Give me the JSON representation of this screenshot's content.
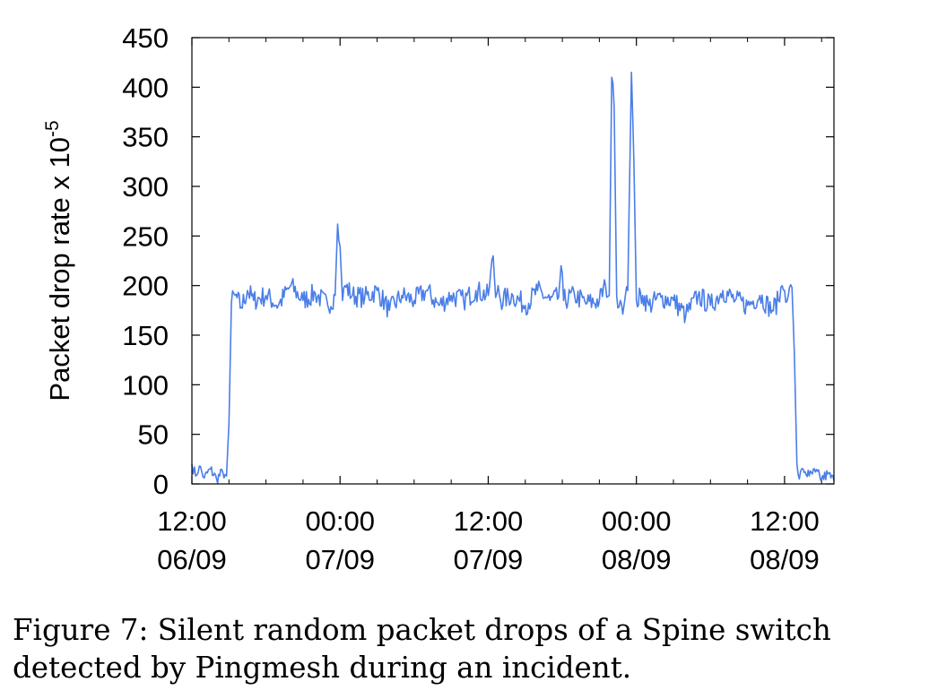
{
  "chart_data": {
    "type": "line",
    "ylabel": "Packet drop rate x 10",
    "ylabel_exponent": "-5",
    "y_ticks": [
      0,
      50,
      100,
      150,
      200,
      250,
      300,
      350,
      400,
      450
    ],
    "ylim": [
      0,
      450
    ],
    "x_range_hours": [
      0,
      52
    ],
    "x_ticks": [
      {
        "hour": 0,
        "line1": "12:00",
        "line2": "06/09"
      },
      {
        "hour": 12,
        "line1": "00:00",
        "line2": "07/09"
      },
      {
        "hour": 24,
        "line1": "12:00",
        "line2": "07/09"
      },
      {
        "hour": 36,
        "line1": "00:00",
        "line2": "08/09"
      },
      {
        "hour": 48,
        "line1": "12:00",
        "line2": "08/09"
      }
    ],
    "x_minor_tick_hours": [
      3,
      6,
      9,
      15,
      18,
      21,
      27,
      30,
      33,
      39,
      42,
      45,
      51
    ],
    "series": [
      {
        "color": "#4a7ee8",
        "x": [
          0,
          0.3,
          0.6,
          1.0,
          1.5,
          2.0,
          2.5,
          2.8,
          3.0,
          3.2,
          3.5,
          4.0,
          4.5,
          5.0,
          6.0,
          7.0,
          8.0,
          9.0,
          10.0,
          11.0,
          11.6,
          11.8,
          12.0,
          12.2,
          12.4,
          13.0,
          14.0,
          15.0,
          16.0,
          17.0,
          18.0,
          19.0,
          20.0,
          21.0,
          22.0,
          23.0,
          24.0,
          24.4,
          24.6,
          24.8,
          25.0,
          26.0,
          27.0,
          28.0,
          29.0,
          29.7,
          29.9,
          30.1,
          31.0,
          32.0,
          33.0,
          33.5,
          33.8,
          34.0,
          34.2,
          34.4,
          34.7,
          35.0,
          35.3,
          35.6,
          35.8,
          36.0,
          36.5,
          37.0,
          38.0,
          39.0,
          40.0,
          41.0,
          42.0,
          43.0,
          44.0,
          45.0,
          46.0,
          47.0,
          47.5,
          47.8,
          48.0,
          48.3,
          48.6,
          48.8,
          49.0,
          49.2,
          49.5,
          50.0,
          50.5,
          51.0,
          51.5,
          52.0
        ],
        "y": [
          20,
          8,
          18,
          6,
          15,
          5,
          12,
          8,
          60,
          183,
          190,
          178,
          195,
          185,
          190,
          180,
          200,
          185,
          192,
          180,
          190,
          262,
          240,
          185,
          200,
          190,
          188,
          195,
          175,
          190,
          185,
          195,
          180,
          190,
          185,
          195,
          190,
          230,
          188,
          200,
          185,
          190,
          180,
          195,
          185,
          188,
          220,
          185,
          190,
          182,
          185,
          200,
          190,
          410,
          380,
          190,
          185,
          180,
          195,
          415,
          325,
          185,
          190,
          180,
          188,
          185,
          170,
          190,
          180,
          195,
          185,
          180,
          190,
          175,
          185,
          200,
          195,
          190,
          198,
          130,
          20,
          5,
          15,
          8,
          12,
          5,
          10,
          3
        ]
      }
    ]
  },
  "caption": {
    "line1": "Figure 7: Silent random packet drops of a Spine switch",
    "line2": "detected by Pingmesh during an incident."
  }
}
